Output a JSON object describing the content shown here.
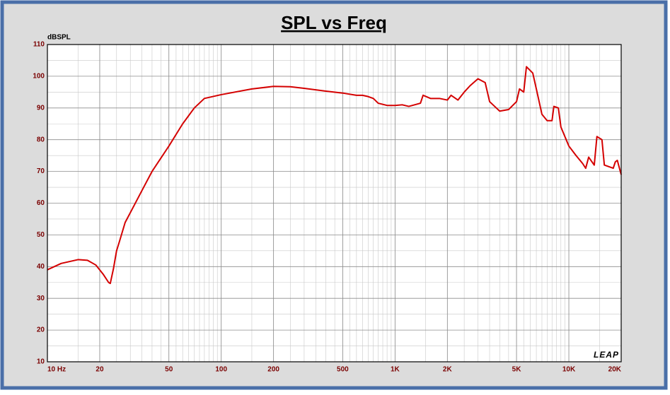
{
  "chart_data": {
    "type": "line",
    "title": "SPL vs Freq",
    "y_label": "dBSPL",
    "logo": "LEAP",
    "color": "#d40000",
    "x_log": true,
    "grid": true,
    "xlim": [
      10,
      20000
    ],
    "ylim": [
      10,
      110
    ],
    "xticks": [
      {
        "value": 10,
        "label": "10 Hz"
      },
      20,
      50,
      100,
      200,
      500,
      {
        "value": 1000,
        "label": "1K"
      },
      {
        "value": 2000,
        "label": "2K"
      },
      {
        "value": 5000,
        "label": "5K"
      },
      {
        "value": 10000,
        "label": "10K"
      },
      {
        "value": 20000,
        "label": "20K"
      }
    ],
    "yticks": [
      10,
      20,
      30,
      40,
      50,
      60,
      70,
      80,
      90,
      100,
      110
    ],
    "x": [
      10,
      12,
      15,
      17,
      19,
      21,
      22.5,
      23,
      24,
      25,
      26,
      28,
      30,
      35,
      40,
      50,
      60,
      70,
      80,
      100,
      150,
      200,
      250,
      300,
      400,
      500,
      600,
      650,
      700,
      750,
      800,
      900,
      1000,
      1100,
      1200,
      1400,
      1450,
      1600,
      1800,
      2000,
      2100,
      2300,
      2500,
      2700,
      3000,
      3300,
      3500,
      4000,
      4500,
      5000,
      5200,
      5500,
      5700,
      6200,
      6500,
      7000,
      7500,
      8000,
      8200,
      8700,
      9000,
      10000,
      11000,
      12000,
      12500,
      13000,
      14000,
      14500,
      15500,
      16000,
      18000,
      18500,
      19000,
      20000
    ],
    "values": [
      39,
      41,
      42.2,
      42,
      40.5,
      37.5,
      35,
      34.7,
      39.4,
      45,
      48,
      53.9,
      57,
      64,
      70,
      78,
      85,
      90,
      93,
      94.2,
      96,
      96.8,
      96.7,
      96.2,
      95.3,
      94.7,
      94,
      94,
      93.6,
      93,
      91.5,
      90.8,
      90.8,
      91,
      90.5,
      91.5,
      94,
      93,
      93,
      92.5,
      94,
      92.5,
      95,
      97,
      99.2,
      98,
      92,
      89,
      89.5,
      92,
      96,
      95,
      103,
      101,
      96,
      88,
      86,
      86,
      90.5,
      90,
      84,
      78,
      75,
      72.5,
      71,
      74.5,
      72,
      81,
      80,
      72,
      71,
      73,
      73.5,
      69
    ]
  }
}
